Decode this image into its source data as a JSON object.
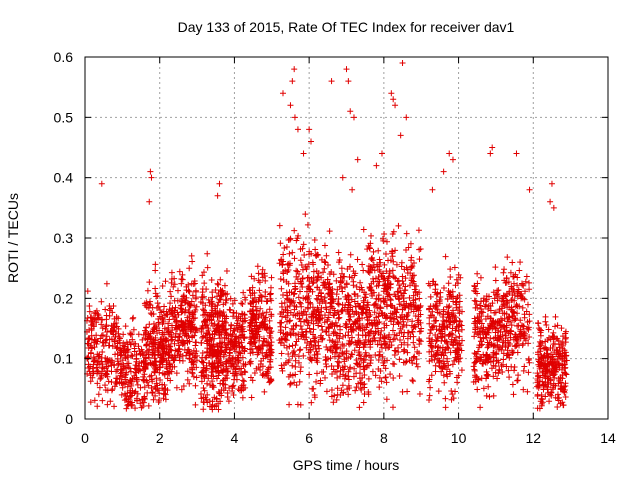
{
  "chart_data": {
    "type": "scatter",
    "title": "Day 133 of 2015, Rate Of TEC Index for receiver dav1",
    "xlabel": "GPS time / hours",
    "ylabel": "ROTI / TECUs",
    "xlim": [
      0,
      14
    ],
    "ylim": [
      0,
      0.6
    ],
    "xticks": [
      0,
      2,
      4,
      6,
      8,
      10,
      12,
      14
    ],
    "yticks": [
      0,
      0.1,
      0.2,
      0.3,
      0.4,
      0.5,
      0.6
    ],
    "xtick_labels": [
      "0",
      "2",
      "4",
      "6",
      "8",
      "10",
      "12",
      "14"
    ],
    "ytick_labels": [
      "0",
      "0.1",
      "0.2",
      "0.3",
      "0.4",
      "0.5",
      "0.6"
    ],
    "grid": true,
    "marker": "+",
    "color": "#e00000",
    "series": [
      {
        "name": "ROTI",
        "clusters": [
          {
            "x_range": [
              0.05,
              0.95
            ],
            "y_mean": 0.11,
            "y_spread": 0.07,
            "count": 220
          },
          {
            "x_range": [
              0.95,
              1.6
            ],
            "y_mean": 0.08,
            "y_spread": 0.06,
            "count": 160
          },
          {
            "x_range": [
              1.6,
              2.3
            ],
            "y_mean": 0.12,
            "y_spread": 0.08,
            "count": 260
          },
          {
            "x_range": [
              2.3,
              3.0
            ],
            "y_mean": 0.15,
            "y_spread": 0.07,
            "count": 240
          },
          {
            "x_range": [
              3.1,
              3.8
            ],
            "y_mean": 0.13,
            "y_spread": 0.09,
            "count": 340
          },
          {
            "x_range": [
              3.8,
              4.3
            ],
            "y_mean": 0.12,
            "y_spread": 0.07,
            "count": 170
          },
          {
            "x_range": [
              4.4,
              5.0
            ],
            "y_mean": 0.15,
            "y_spread": 0.08,
            "count": 230
          },
          {
            "x_range": [
              5.2,
              6.6
            ],
            "y_mean": 0.18,
            "y_spread": 0.1,
            "count": 420
          },
          {
            "x_range": [
              6.6,
              7.6
            ],
            "y_mean": 0.15,
            "y_spread": 0.1,
            "count": 330
          },
          {
            "x_range": [
              7.6,
              9.0
            ],
            "y_mean": 0.18,
            "y_spread": 0.1,
            "count": 420
          },
          {
            "x_range": [
              9.2,
              10.1
            ],
            "y_mean": 0.14,
            "y_spread": 0.08,
            "count": 270
          },
          {
            "x_range": [
              10.4,
              11.2
            ],
            "y_mean": 0.14,
            "y_spread": 0.08,
            "count": 240
          },
          {
            "x_range": [
              11.2,
              11.9
            ],
            "y_mean": 0.16,
            "y_spread": 0.08,
            "count": 190
          },
          {
            "x_range": [
              12.1,
              12.9
            ],
            "y_mean": 0.09,
            "y_spread": 0.06,
            "count": 260
          }
        ],
        "outliers": [
          [
            0.45,
            0.39
          ],
          [
            1.75,
            0.41
          ],
          [
            1.78,
            0.4
          ],
          [
            1.72,
            0.36
          ],
          [
            3.6,
            0.39
          ],
          [
            3.55,
            0.37
          ],
          [
            5.3,
            0.54
          ],
          [
            5.6,
            0.58
          ],
          [
            5.55,
            0.56
          ],
          [
            5.5,
            0.52
          ],
          [
            5.62,
            0.5
          ],
          [
            5.7,
            0.48
          ],
          [
            6.0,
            0.48
          ],
          [
            6.05,
            0.46
          ],
          [
            5.85,
            0.44
          ],
          [
            6.6,
            0.56
          ],
          [
            7.0,
            0.58
          ],
          [
            7.05,
            0.56
          ],
          [
            7.1,
            0.51
          ],
          [
            7.2,
            0.5
          ],
          [
            7.3,
            0.43
          ],
          [
            7.8,
            0.42
          ],
          [
            7.95,
            0.44
          ],
          [
            8.2,
            0.54
          ],
          [
            8.25,
            0.53
          ],
          [
            8.3,
            0.52
          ],
          [
            8.5,
            0.59
          ],
          [
            8.6,
            0.5
          ],
          [
            8.45,
            0.47
          ],
          [
            9.3,
            0.38
          ],
          [
            9.6,
            0.41
          ],
          [
            9.75,
            0.44
          ],
          [
            9.85,
            0.43
          ],
          [
            10.9,
            0.45
          ],
          [
            10.85,
            0.44
          ],
          [
            11.55,
            0.44
          ],
          [
            11.9,
            0.38
          ],
          [
            12.5,
            0.39
          ],
          [
            12.45,
            0.36
          ],
          [
            12.55,
            0.35
          ],
          [
            6.9,
            0.4
          ],
          [
            7.15,
            0.38
          ]
        ]
      }
    ]
  }
}
